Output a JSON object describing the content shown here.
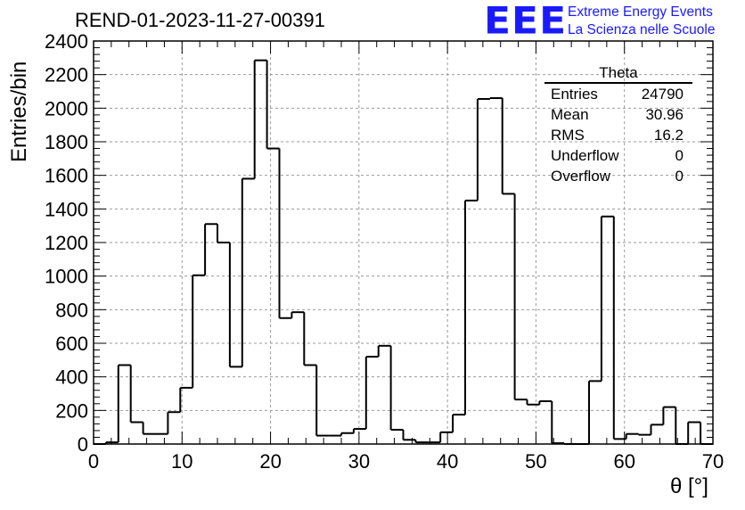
{
  "header": {
    "run_title": "REND-01-2023-11-27-00391",
    "logo_mark": "EEE",
    "logo_line1": "Extreme Energy Events",
    "logo_line2": "La Scienza nelle Scuole"
  },
  "stats_box": {
    "title": "Theta",
    "rows": [
      {
        "label": "Entries",
        "value": "24790"
      },
      {
        "label": "Mean",
        "value": "30.96"
      },
      {
        "label": "RMS",
        "value": "16.2"
      },
      {
        "label": "Underflow",
        "value": "0"
      },
      {
        "label": "Overflow",
        "value": "0"
      }
    ]
  },
  "colors": {
    "line": "#000000",
    "grid": "#9a9a9a",
    "logo": "#1a1aff"
  },
  "chart_data": {
    "type": "bar",
    "style": "step-histogram",
    "title": "REND-01-2023-11-27-00391",
    "xlabel": "θ [°]",
    "ylabel": "Entries/bin",
    "xlim": [
      0,
      70
    ],
    "ylim": [
      0,
      2400
    ],
    "xticks": [
      0,
      10,
      20,
      30,
      40,
      50,
      60,
      70
    ],
    "yticks": [
      0,
      200,
      400,
      600,
      800,
      1000,
      1200,
      1400,
      1600,
      1800,
      2000,
      2200,
      2400
    ],
    "grid": true,
    "legend": "top-right",
    "bin_width": 1.4,
    "bin_edges_start": 0,
    "values": [
      0,
      10,
      470,
      130,
      60,
      60,
      190,
      335,
      1005,
      1310,
      1200,
      460,
      1580,
      2285,
      1760,
      750,
      785,
      470,
      50,
      50,
      65,
      90,
      520,
      585,
      85,
      25,
      10,
      10,
      70,
      175,
      1450,
      2055,
      2060,
      1490,
      265,
      235,
      255,
      5,
      0,
      0,
      375,
      1355,
      30,
      60,
      55,
      115,
      220,
      0,
      130,
      0
    ]
  }
}
